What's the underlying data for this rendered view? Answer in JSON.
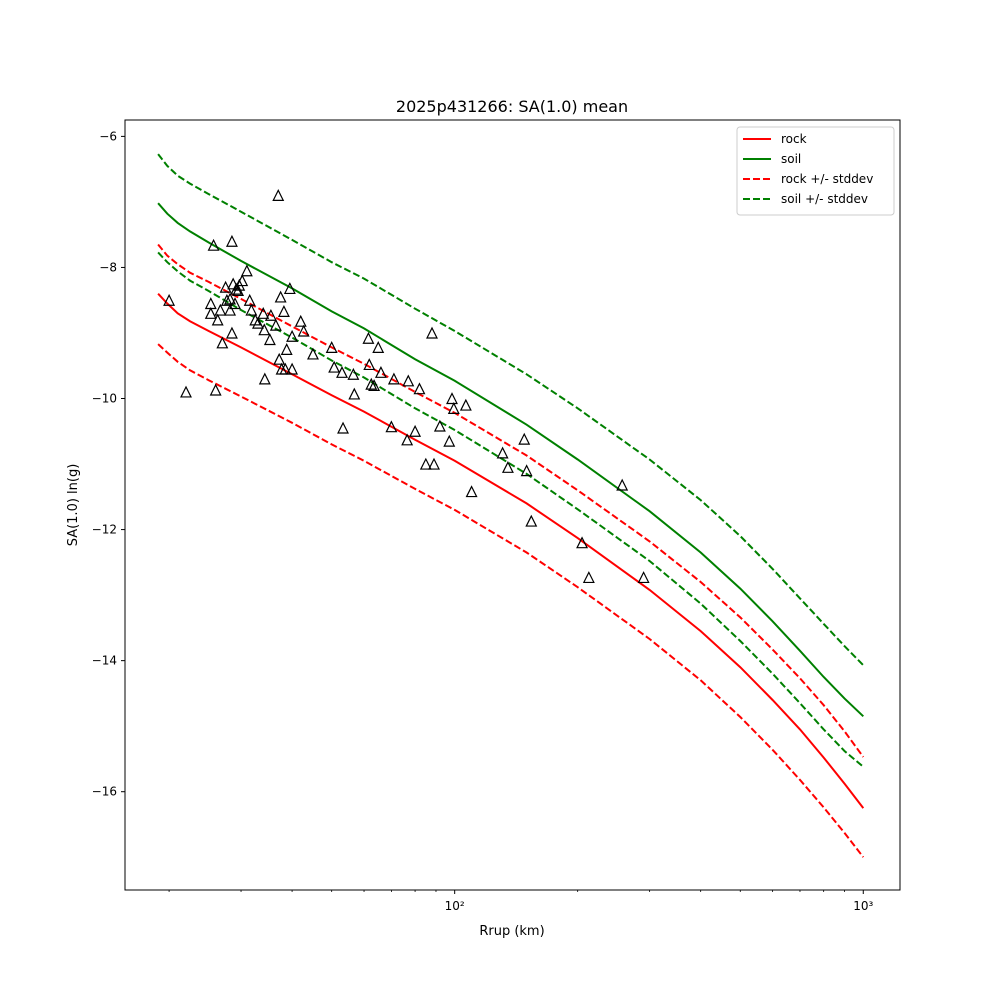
{
  "chart_data": {
    "type": "line",
    "title": "2025p431266: SA(1.0) mean",
    "xlabel": "Rrup (km)",
    "ylabel": "SA(1.0) ln(g)",
    "xscale": "log",
    "xlim": [
      15.6,
      1230
    ],
    "ylim": [
      -17.5,
      -5.75
    ],
    "x_ticks": [
      {
        "value": 100,
        "label": "10²"
      },
      {
        "value": 1000,
        "label": "10³"
      }
    ],
    "y_ticks": [
      {
        "value": -6,
        "label": "−6"
      },
      {
        "value": -8,
        "label": "−8"
      },
      {
        "value": -10,
        "label": "−10"
      },
      {
        "value": -12,
        "label": "−12"
      },
      {
        "value": -14,
        "label": "−14"
      },
      {
        "value": -16,
        "label": "−16"
      }
    ],
    "grid": false,
    "legend_position": "top-right",
    "series": [
      {
        "name": "rock",
        "color": "#ff0000",
        "style": "solid",
        "points": [
          [
            18.8,
            -8.4
          ],
          [
            19.8,
            -8.55
          ],
          [
            21,
            -8.7
          ],
          [
            22.5,
            -8.82
          ],
          [
            25,
            -8.97
          ],
          [
            30,
            -9.22
          ],
          [
            40,
            -9.63
          ],
          [
            50,
            -9.95
          ],
          [
            60,
            -10.2
          ],
          [
            80,
            -10.63
          ],
          [
            100,
            -10.95
          ],
          [
            150,
            -11.6
          ],
          [
            200,
            -12.13
          ],
          [
            300,
            -12.92
          ],
          [
            400,
            -13.55
          ],
          [
            500,
            -14.1
          ],
          [
            600,
            -14.6
          ],
          [
            700,
            -15.05
          ],
          [
            800,
            -15.48
          ],
          [
            900,
            -15.88
          ],
          [
            1000,
            -16.25
          ]
        ]
      },
      {
        "name": "soil",
        "color": "#008000",
        "style": "solid",
        "points": [
          [
            18.8,
            -7.02
          ],
          [
            19.8,
            -7.18
          ],
          [
            21,
            -7.32
          ],
          [
            22.5,
            -7.45
          ],
          [
            25,
            -7.62
          ],
          [
            30,
            -7.9
          ],
          [
            40,
            -8.32
          ],
          [
            50,
            -8.67
          ],
          [
            60,
            -8.93
          ],
          [
            80,
            -9.4
          ],
          [
            100,
            -9.73
          ],
          [
            150,
            -10.4
          ],
          [
            200,
            -10.93
          ],
          [
            300,
            -11.72
          ],
          [
            400,
            -12.35
          ],
          [
            500,
            -12.9
          ],
          [
            600,
            -13.4
          ],
          [
            700,
            -13.85
          ],
          [
            800,
            -14.25
          ],
          [
            900,
            -14.58
          ],
          [
            1000,
            -14.85
          ]
        ]
      },
      {
        "name": "rock +/- stddev",
        "color": "#ff0000",
        "style": "dashed",
        "points": [
          [
            18.8,
            -7.65
          ],
          [
            19.8,
            -7.82
          ],
          [
            21,
            -7.95
          ],
          [
            22.5,
            -8.08
          ],
          [
            25,
            -8.22
          ],
          [
            30,
            -8.48
          ],
          [
            40,
            -8.9
          ],
          [
            50,
            -9.22
          ],
          [
            60,
            -9.47
          ],
          [
            80,
            -9.9
          ],
          [
            100,
            -10.22
          ],
          [
            150,
            -10.87
          ],
          [
            200,
            -11.4
          ],
          [
            300,
            -12.18
          ],
          [
            400,
            -12.8
          ],
          [
            500,
            -13.34
          ],
          [
            600,
            -13.83
          ],
          [
            700,
            -14.27
          ],
          [
            800,
            -14.68
          ],
          [
            900,
            -15.08
          ],
          [
            1000,
            -15.47
          ]
        ]
      },
      {
        "name": "",
        "color": "#ff0000",
        "style": "dashed",
        "points": [
          [
            18.8,
            -9.17
          ],
          [
            19.8,
            -9.3
          ],
          [
            21,
            -9.44
          ],
          [
            22.5,
            -9.57
          ],
          [
            25,
            -9.72
          ],
          [
            30,
            -9.97
          ],
          [
            40,
            -10.37
          ],
          [
            50,
            -10.7
          ],
          [
            60,
            -10.95
          ],
          [
            80,
            -11.38
          ],
          [
            100,
            -11.7
          ],
          [
            150,
            -12.35
          ],
          [
            200,
            -12.88
          ],
          [
            300,
            -13.67
          ],
          [
            400,
            -14.3
          ],
          [
            500,
            -14.86
          ],
          [
            600,
            -15.36
          ],
          [
            700,
            -15.82
          ],
          [
            800,
            -16.24
          ],
          [
            900,
            -16.63
          ],
          [
            1000,
            -17.0
          ]
        ]
      },
      {
        "name": "soil +/- stddev",
        "color": "#008000",
        "style": "dashed",
        "points": [
          [
            18.8,
            -6.27
          ],
          [
            19.8,
            -6.45
          ],
          [
            21,
            -6.6
          ],
          [
            22.5,
            -6.72
          ],
          [
            25,
            -6.88
          ],
          [
            30,
            -7.15
          ],
          [
            40,
            -7.58
          ],
          [
            50,
            -7.92
          ],
          [
            60,
            -8.17
          ],
          [
            80,
            -8.63
          ],
          [
            100,
            -8.97
          ],
          [
            150,
            -9.63
          ],
          [
            200,
            -10.15
          ],
          [
            300,
            -10.93
          ],
          [
            400,
            -11.55
          ],
          [
            500,
            -12.1
          ],
          [
            600,
            -12.6
          ],
          [
            700,
            -13.05
          ],
          [
            800,
            -13.44
          ],
          [
            900,
            -13.78
          ],
          [
            1000,
            -14.07
          ]
        ]
      },
      {
        "name": "",
        "color": "#008000",
        "style": "dashed",
        "points": [
          [
            18.8,
            -7.77
          ],
          [
            19.8,
            -7.92
          ],
          [
            21,
            -8.06
          ],
          [
            22.5,
            -8.2
          ],
          [
            25,
            -8.36
          ],
          [
            30,
            -8.65
          ],
          [
            40,
            -9.07
          ],
          [
            50,
            -9.42
          ],
          [
            60,
            -9.68
          ],
          [
            80,
            -10.15
          ],
          [
            100,
            -10.48
          ],
          [
            150,
            -11.15
          ],
          [
            200,
            -11.69
          ],
          [
            300,
            -12.48
          ],
          [
            400,
            -13.13
          ],
          [
            500,
            -13.7
          ],
          [
            600,
            -14.2
          ],
          [
            700,
            -14.65
          ],
          [
            800,
            -15.05
          ],
          [
            900,
            -15.38
          ],
          [
            1000,
            -15.62
          ]
        ]
      }
    ],
    "observations": {
      "marker": "triangle",
      "color": "#000000",
      "points": [
        [
          20,
          -8.5
        ],
        [
          22,
          -9.9
        ],
        [
          25.3,
          -8.7
        ],
        [
          25.3,
          -8.55
        ],
        [
          25.7,
          -7.66
        ],
        [
          26,
          -9.87
        ],
        [
          26.3,
          -8.8
        ],
        [
          26.7,
          -8.65
        ],
        [
          27,
          -9.15
        ],
        [
          27.5,
          -8.3
        ],
        [
          27.7,
          -8.5
        ],
        [
          28.2,
          -8.65
        ],
        [
          28.2,
          -8.48
        ],
        [
          28.5,
          -7.6
        ],
        [
          28.5,
          -9.0
        ],
        [
          28.7,
          -8.25
        ],
        [
          29,
          -8.55
        ],
        [
          29.2,
          -8.33
        ],
        [
          29.5,
          -8.35
        ],
        [
          29.7,
          -8.27
        ],
        [
          30.2,
          -8.2
        ],
        [
          31,
          -8.05
        ],
        [
          31.5,
          -8.5
        ],
        [
          31.8,
          -8.65
        ],
        [
          32.5,
          -8.8
        ],
        [
          33,
          -8.85
        ],
        [
          34,
          -8.7
        ],
        [
          34.2,
          -8.95
        ],
        [
          34.3,
          -9.7
        ],
        [
          35.3,
          -9.1
        ],
        [
          35.5,
          -8.73
        ],
        [
          36.5,
          -8.88
        ],
        [
          37,
          -6.9
        ],
        [
          37.2,
          -9.4
        ],
        [
          37.5,
          -8.45
        ],
        [
          37.7,
          -9.55
        ],
        [
          38.2,
          -8.67
        ],
        [
          38.5,
          -9.55
        ],
        [
          38.8,
          -9.25
        ],
        [
          39.5,
          -8.32
        ],
        [
          40,
          -9.55
        ],
        [
          40,
          -9.05
        ],
        [
          42,
          -8.82
        ],
        [
          42.7,
          -8.97
        ],
        [
          45,
          -9.32
        ],
        [
          50,
          -9.22
        ],
        [
          50.7,
          -9.52
        ],
        [
          53,
          -9.6
        ],
        [
          53.3,
          -10.45
        ],
        [
          56.5,
          -9.63
        ],
        [
          56.8,
          -9.93
        ],
        [
          61.5,
          -9.08
        ],
        [
          61.8,
          -9.48
        ],
        [
          62.5,
          -9.78
        ],
        [
          63.5,
          -9.8
        ],
        [
          65,
          -9.22
        ],
        [
          66,
          -9.6
        ],
        [
          70,
          -10.43
        ],
        [
          71,
          -9.7
        ],
        [
          76.5,
          -10.63
        ],
        [
          77,
          -9.73
        ],
        [
          80,
          -10.5
        ],
        [
          82,
          -9.85
        ],
        [
          85,
          -11.0
        ],
        [
          88,
          -9.0
        ],
        [
          89,
          -11.0
        ],
        [
          92,
          -10.42
        ],
        [
          97,
          -10.65
        ],
        [
          98.5,
          -10.0
        ],
        [
          99.5,
          -10.15
        ],
        [
          106.5,
          -10.1
        ],
        [
          110,
          -11.42
        ],
        [
          131,
          -10.83
        ],
        [
          135,
          -11.05
        ],
        [
          148,
          -10.62
        ],
        [
          150,
          -11.1
        ],
        [
          154,
          -11.87
        ],
        [
          205,
          -12.2
        ],
        [
          213,
          -12.73
        ],
        [
          257,
          -11.32
        ],
        [
          290,
          -12.73
        ]
      ]
    }
  }
}
